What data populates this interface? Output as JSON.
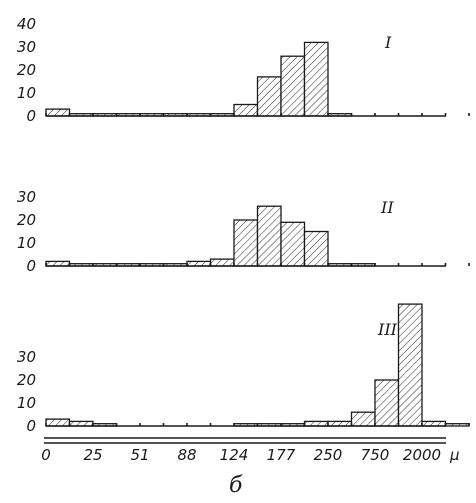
{
  "caption": "б",
  "unit": "μ",
  "chart_data": {
    "type": "bar",
    "x_tick_labels": [
      "0",
      "25",
      "51",
      "88",
      "124",
      "177",
      "250",
      "750",
      "2000"
    ],
    "panels": [
      {
        "label": "I",
        "y_ticks": [
          "0",
          "10",
          "20",
          "30",
          "40"
        ],
        "ylim": [
          0,
          40
        ],
        "values": [
          3,
          1,
          1,
          1,
          1,
          1,
          1,
          1,
          5,
          17,
          26,
          32,
          1,
          0,
          0,
          0,
          0,
          0
        ]
      },
      {
        "label": "II",
        "y_ticks": [
          "0",
          "10",
          "20",
          "30"
        ],
        "ylim": [
          0,
          35
        ],
        "values": [
          2,
          1,
          1,
          1,
          1,
          1,
          2,
          3,
          20,
          26,
          19,
          15,
          1,
          1,
          0,
          0,
          0,
          0
        ]
      },
      {
        "label": "III",
        "y_ticks": [
          "0",
          "10",
          "20",
          "30"
        ],
        "ylim": [
          0,
          55
        ],
        "values": [
          3,
          2,
          1,
          0,
          0,
          0,
          0,
          0,
          1,
          1,
          1,
          2,
          2,
          6,
          20,
          53,
          2,
          1
        ]
      }
    ]
  }
}
